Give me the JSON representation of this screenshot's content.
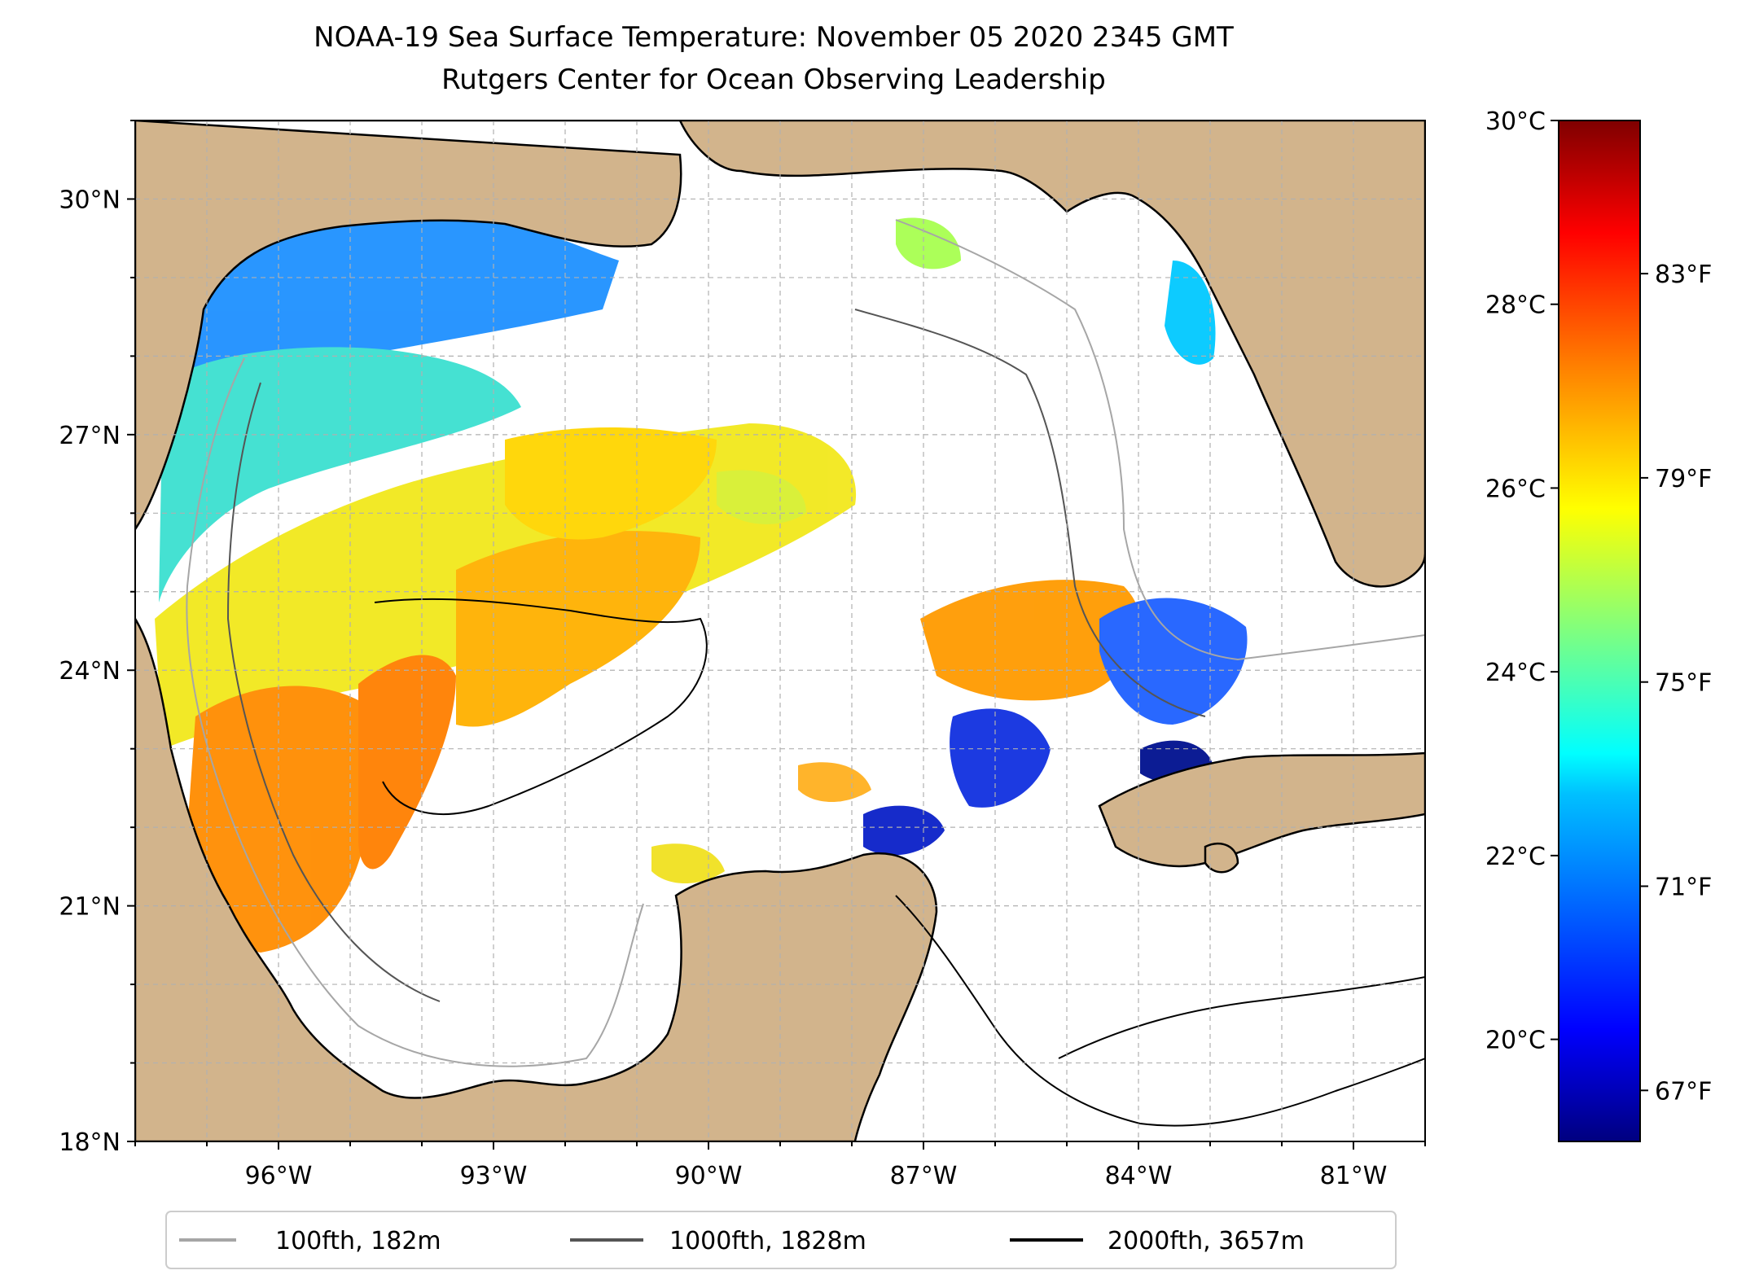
{
  "title_line1": "NOAA-19 Sea Surface Temperature: November 05 2020 2345 GMT",
  "title_line2": "Rutgers Center for Ocean Observing Leadership",
  "map": {
    "lat_labels": [
      "30°N",
      "27°N",
      "24°N",
      "21°N",
      "18°N"
    ],
    "lat_values": [
      30,
      27,
      24,
      21,
      18
    ],
    "lon_labels": [
      "96°W",
      "93°W",
      "90°W",
      "87°W",
      "84°W",
      "81°W"
    ],
    "lon_values": [
      -96,
      -93,
      -90,
      -87,
      -84,
      -81
    ],
    "lat_range": [
      18,
      31
    ],
    "lon_range": [
      -98,
      -80
    ],
    "land_color": "#d2b48c",
    "grid": "on (dashed, light grey)"
  },
  "colorbar": {
    "celsius_labels": [
      "30°C",
      "28°C",
      "26°C",
      "24°C",
      "22°C",
      "20°C"
    ],
    "celsius_values": [
      30,
      28,
      26,
      24,
      22,
      20
    ],
    "fahrenheit_labels": [
      "83°F",
      "79°F",
      "75°F",
      "71°F",
      "67°F"
    ],
    "fahrenheit_values": [
      83,
      79,
      75,
      71,
      67
    ],
    "range_f": [
      66,
      86
    ],
    "colormap": "jet",
    "colors": [
      "#00007f",
      "#0000ff",
      "#007fff",
      "#00ffff",
      "#7fff7f",
      "#ffff00",
      "#ff7f00",
      "#ff0000",
      "#7f0000"
    ]
  },
  "legend": {
    "items": [
      {
        "label": "100fth, 182m",
        "color": "#a6a6a6"
      },
      {
        "label": "1000fth, 1828m",
        "color": "#555555"
      },
      {
        "label": "2000fth, 3657m",
        "color": "#000000"
      }
    ]
  }
}
